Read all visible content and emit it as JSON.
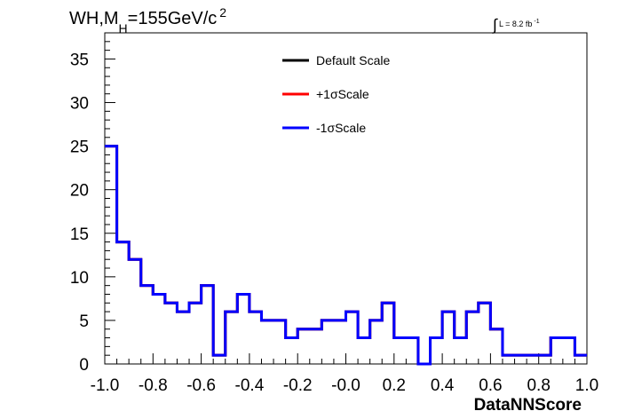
{
  "title": {
    "main": "WH,M",
    "subscript": "H",
    "value": "=155GeV/c",
    "superscript": "2"
  },
  "lumi": {
    "integral": "∫",
    "text": "L = 8.2 fb",
    "superscript": "-1"
  },
  "chart_data": {
    "type": "histogram",
    "xlabel": "DataNNScore",
    "ylabel": "",
    "xlim": [
      -1.0,
      1.0
    ],
    "ylim": [
      0,
      38
    ],
    "x_ticks": [
      "-1.0",
      "-0.8",
      "-0.6",
      "-0.4",
      "-0.2",
      "-0.0",
      "0.2",
      "0.4",
      "0.6",
      "0.8",
      "1.0"
    ],
    "y_ticks": [
      "0",
      "5",
      "10",
      "15",
      "20",
      "25",
      "30",
      "35"
    ],
    "bin_edges": [
      -1.0,
      -0.95,
      -0.9,
      -0.85,
      -0.8,
      -0.75,
      -0.7,
      -0.65,
      -0.6,
      -0.55,
      -0.5,
      -0.45,
      -0.4,
      -0.35,
      -0.3,
      -0.25,
      -0.2,
      -0.15,
      -0.1,
      -0.05,
      0.0,
      0.05,
      0.1,
      0.15,
      0.2,
      0.25,
      0.3,
      0.35,
      0.4,
      0.45,
      0.5,
      0.55,
      0.6,
      0.65,
      0.7,
      0.75,
      0.8,
      0.85,
      0.9,
      0.95,
      1.0
    ],
    "series": [
      {
        "name": "Default Scale",
        "color": "#000000",
        "values": [
          25,
          14,
          12,
          9,
          8,
          7,
          6,
          7,
          9,
          1,
          6,
          8,
          6,
          5,
          5,
          3,
          4,
          4,
          5,
          5,
          6,
          3,
          5,
          7,
          3,
          3,
          0,
          3,
          6,
          3,
          6,
          7,
          4,
          1,
          1,
          1,
          1,
          3,
          3,
          1
        ]
      },
      {
        "name": "+1σScale",
        "color": "#ff0000",
        "values": [
          25,
          14,
          12,
          9,
          8,
          7,
          6,
          7,
          9,
          1,
          6,
          8,
          6,
          5,
          5,
          3,
          4,
          4,
          5,
          5,
          6,
          3,
          5,
          7,
          3,
          3,
          0,
          3,
          6,
          3,
          6,
          7,
          4,
          1,
          1,
          1,
          1,
          3,
          3,
          1
        ]
      },
      {
        "name": "-1σScale",
        "color": "#0000ff",
        "values": [
          25,
          14,
          12,
          9,
          8,
          7,
          6,
          7,
          9,
          1,
          6,
          8,
          6,
          5,
          5,
          3,
          4,
          4,
          5,
          5,
          6,
          3,
          5,
          7,
          3,
          3,
          0,
          3,
          6,
          3,
          6,
          7,
          4,
          1,
          1,
          1,
          1,
          3,
          3,
          1
        ]
      }
    ],
    "legend_position": "top-center"
  }
}
